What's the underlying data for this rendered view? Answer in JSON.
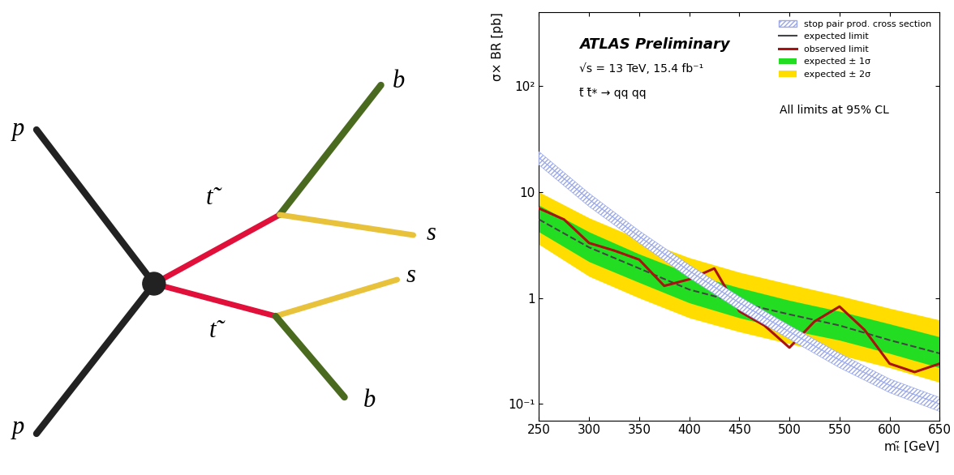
{
  "diagram": {
    "particles": [
      "p",
      "p",
      "t̃",
      "t̃",
      "b",
      "s",
      "s",
      "b"
    ]
  },
  "chart_data": {
    "type": "line",
    "x_label": "mₜ̃ [GeV]",
    "y_label": "σ× BR [pb]",
    "annotations": [
      "ATLAS Preliminary",
      "√s = 13 TeV, 15.4 fb⁻¹",
      "t̃ t̃* → qq qq",
      "All limits at 95% CL"
    ],
    "log": "y",
    "legend": "upper right",
    "xlim": [
      250,
      650
    ],
    "xticks": [
      250,
      300,
      350,
      400,
      450,
      500,
      550,
      600,
      650
    ],
    "ylim": [
      0.07,
      500
    ],
    "yticks": [
      {
        "value": 0.1,
        "label": "10⁻¹"
      },
      {
        "value": 1,
        "label": "1"
      },
      {
        "value": 10,
        "label": "10"
      },
      {
        "value": 100,
        "label": "10²"
      }
    ],
    "series": [
      {
        "name": "stop pair prod. cross section",
        "type": "band",
        "color": "#9aa8e8",
        "x": [
          250,
          300,
          350,
          400,
          450,
          500,
          550,
          600,
          650
        ],
        "values": [
          21,
          8.5,
          3.8,
          1.8,
          0.9,
          0.48,
          0.26,
          0.15,
          0.1
        ],
        "lower": [
          18,
          7.3,
          3.3,
          1.55,
          0.77,
          0.41,
          0.22,
          0.128,
          0.085
        ],
        "upper": [
          24,
          9.7,
          4.3,
          2.05,
          1.03,
          0.55,
          0.3,
          0.172,
          0.115
        ]
      },
      {
        "name": "expected ± 2σ",
        "type": "band",
        "color": "#ffdd00",
        "x": [
          250,
          300,
          350,
          400,
          450,
          500,
          550,
          600,
          650
        ],
        "lower": [
          3.2,
          1.6,
          1.0,
          0.65,
          0.48,
          0.37,
          0.29,
          0.22,
          0.16
        ],
        "upper": [
          10,
          5.7,
          3.6,
          2.4,
          1.75,
          1.35,
          1.05,
          0.8,
          0.62
        ]
      },
      {
        "name": "expected ± 1σ",
        "type": "band",
        "color": "#22dd22",
        "x": [
          250,
          300,
          350,
          400,
          450,
          500,
          550,
          600,
          650
        ],
        "lower": [
          4.2,
          2.2,
          1.4,
          0.9,
          0.65,
          0.5,
          0.4,
          0.3,
          0.22
        ],
        "upper": [
          7.5,
          4.2,
          2.6,
          1.7,
          1.25,
          0.95,
          0.75,
          0.57,
          0.43
        ]
      },
      {
        "name": "expected limit",
        "type": "line",
        "color": "#444444",
        "line_style": "dashed",
        "x": [
          250,
          300,
          350,
          400,
          450,
          500,
          550,
          600,
          650
        ],
        "values": [
          5.5,
          3.0,
          1.9,
          1.2,
          0.9,
          0.7,
          0.55,
          0.4,
          0.3
        ]
      },
      {
        "name": "observed limit",
        "type": "line",
        "color": "#aa1111",
        "line_style": "solid",
        "x": [
          250,
          275,
          300,
          325,
          350,
          375,
          400,
          425,
          450,
          475,
          500,
          525,
          550,
          575,
          600,
          625,
          650
        ],
        "values": [
          7,
          5.5,
          3.3,
          2.8,
          2.3,
          1.3,
          1.5,
          1.9,
          0.75,
          0.55,
          0.34,
          0.6,
          0.83,
          0.5,
          0.24,
          0.2,
          0.24
        ]
      }
    ]
  }
}
